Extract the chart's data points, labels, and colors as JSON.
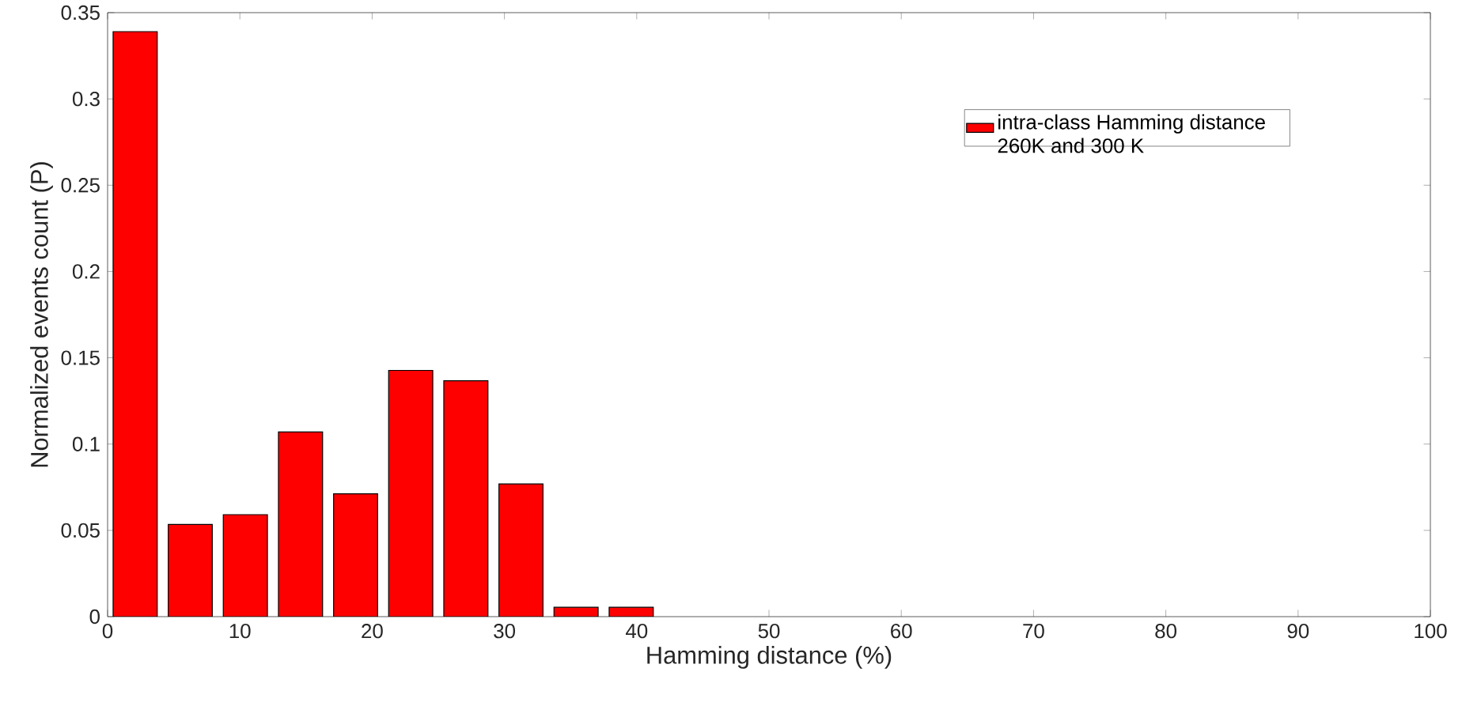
{
  "chart_data": {
    "type": "histogram",
    "bins": [
      0,
      4.17,
      8.33,
      12.5,
      16.67,
      20.83,
      25,
      29.17,
      33.33,
      37.5,
      41.67
    ],
    "series": [
      {
        "name": "intra-class Hamming distance 260K and 300 K",
        "color": "#ff0000",
        "values": [
          0.339,
          0.0534,
          0.0591,
          0.107,
          0.0712,
          0.1427,
          0.1367,
          0.0769,
          0.0054,
          0.0054
        ]
      }
    ],
    "xlabel": "Hamming distance (%)",
    "ylabel": "Normalized events count (P)",
    "xlim": [
      0,
      100
    ],
    "ylim": [
      0,
      0.35
    ],
    "xticks": [
      0,
      10,
      20,
      30,
      40,
      50,
      60,
      70,
      80,
      90,
      100
    ],
    "yticks": [
      0,
      0.05,
      0.1,
      0.15,
      0.2,
      0.25,
      0.3,
      0.35
    ],
    "legend": "top right",
    "grid": false
  }
}
